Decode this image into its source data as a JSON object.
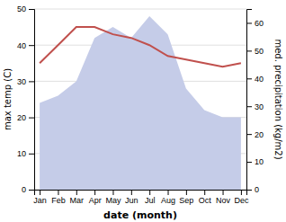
{
  "chart_data": {
    "type": "line",
    "categories": [
      "Jan",
      "Feb",
      "Mar",
      "Apr",
      "May",
      "Jun",
      "Jul",
      "Aug",
      "Sep",
      "Oct",
      "Nov",
      "Dec"
    ],
    "series": [
      {
        "type": "area",
        "color": "#c5cce8",
        "values": [
          24,
          26,
          30,
          42,
          45,
          42,
          48,
          43,
          28,
          22,
          20,
          20
        ]
      },
      {
        "type": "line",
        "color": "#c0504d",
        "values": [
          35,
          40,
          45,
          45,
          43,
          42,
          40,
          37,
          36,
          35,
          34,
          35
        ]
      }
    ],
    "xlabel": "date (month)",
    "ylabel": "max temp (C)",
    "y2label": "med. precipitation (kg/m2)",
    "ylim": [
      0,
      50
    ],
    "yticks": [
      0,
      10,
      20,
      30,
      40,
      50
    ],
    "y2lim": [
      0,
      65
    ],
    "y2ticks": [
      0,
      10,
      20,
      30,
      40,
      50,
      60
    ],
    "grid": true
  }
}
